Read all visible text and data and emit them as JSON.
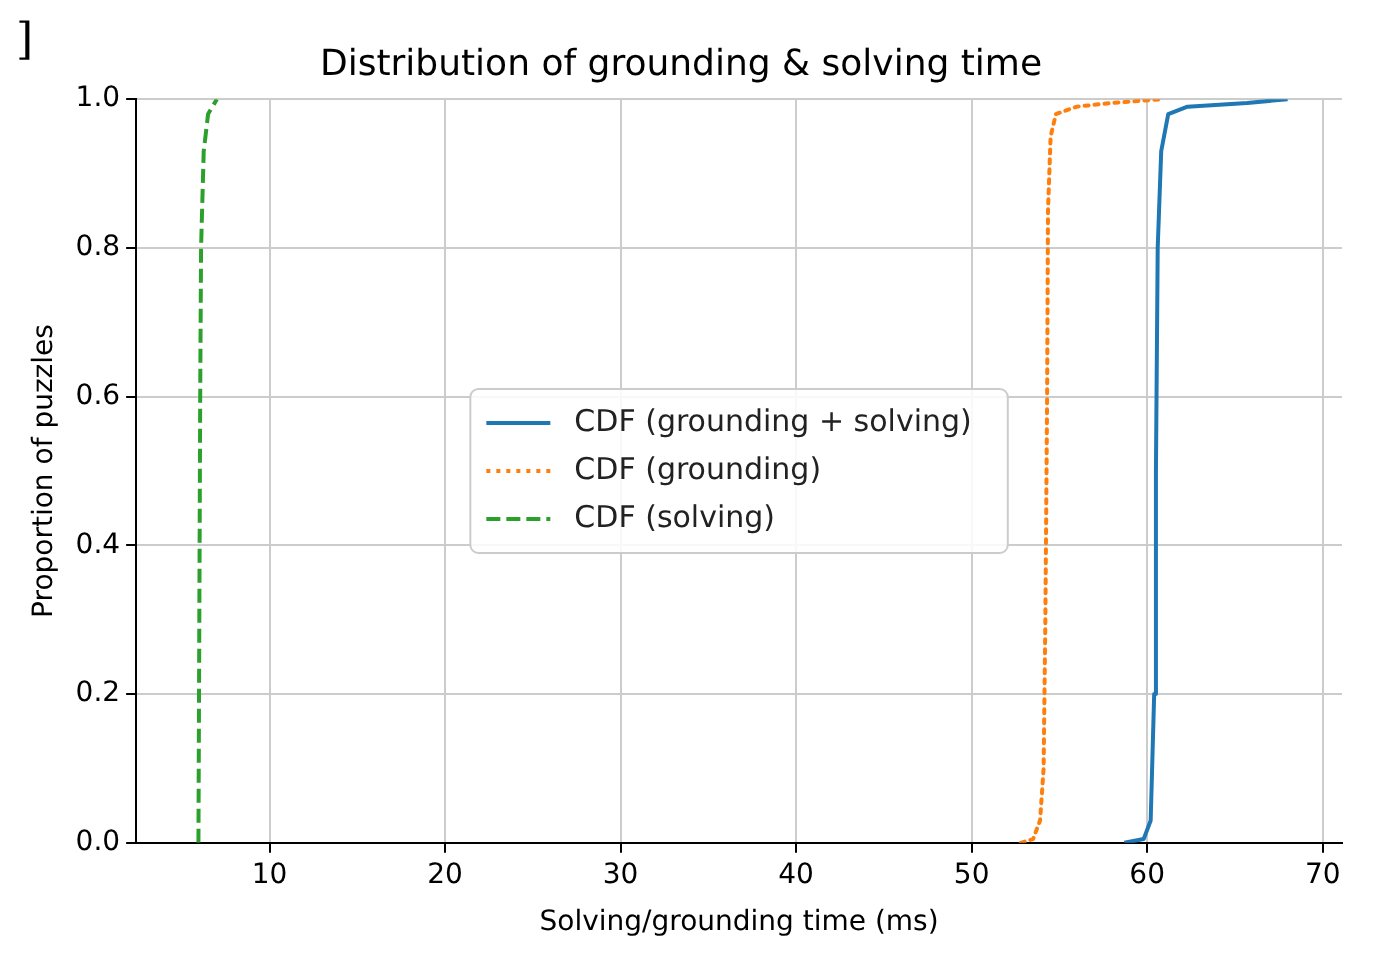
{
  "chart_data": {
    "type": "line",
    "title": "Distribution of grounding & solving time",
    "xlabel": "Solving/grounding time (ms)",
    "ylabel": "Proportion of puzzles",
    "annotations": [
      "]"
    ],
    "xlim": [
      2.4,
      71.1
    ],
    "xticks": [
      10,
      20,
      30,
      40,
      50,
      60,
      70
    ],
    "ylim": [
      0,
      1
    ],
    "yticks": [
      {
        "value": 0,
        "label": "0.0"
      },
      {
        "value": 0.2,
        "label": "0.2"
      },
      {
        "value": 0.4,
        "label": "0.4"
      },
      {
        "value": 0.6,
        "label": "0.6"
      },
      {
        "value": 0.8,
        "label": "0.8"
      },
      {
        "value": 1,
        "label": "1.0"
      }
    ],
    "grid": true,
    "legend": "center",
    "marker": "none",
    "series": [
      {
        "name": "CDF (grounding + solving)",
        "color": "#1f77b4",
        "line_style": "solid",
        "x": [
          58.7,
          59.8,
          60.2,
          60.4,
          60.5,
          60.6,
          60.8,
          61.2,
          62.3,
          65.7,
          68.0
        ],
        "values": [
          0,
          0.005,
          0.03,
          0.2,
          0.5,
          0.8,
          0.93,
          0.98,
          0.99,
          0.995,
          1.0
        ]
      },
      {
        "name": "CDF (grounding)",
        "color": "#ff7f0e",
        "line_style": "dotted",
        "x": [
          52.8,
          53.5,
          53.9,
          54.1,
          54.2,
          54.3,
          54.35,
          54.5,
          54.8,
          56,
          58,
          60.8
        ],
        "values": [
          0,
          0.005,
          0.03,
          0.1,
          0.3,
          0.6,
          0.85,
          0.95,
          0.98,
          0.99,
          0.995,
          1.0
        ]
      },
      {
        "name": "CDF (solving)",
        "color": "#2ca02c",
        "line_style": "dashed",
        "x": [
          5.95,
          6.0,
          6.05,
          6.1,
          6.25,
          6.5,
          7.0
        ],
        "values": [
          0,
          0.3,
          0.6,
          0.8,
          0.93,
          0.98,
          1.0
        ]
      }
    ]
  }
}
